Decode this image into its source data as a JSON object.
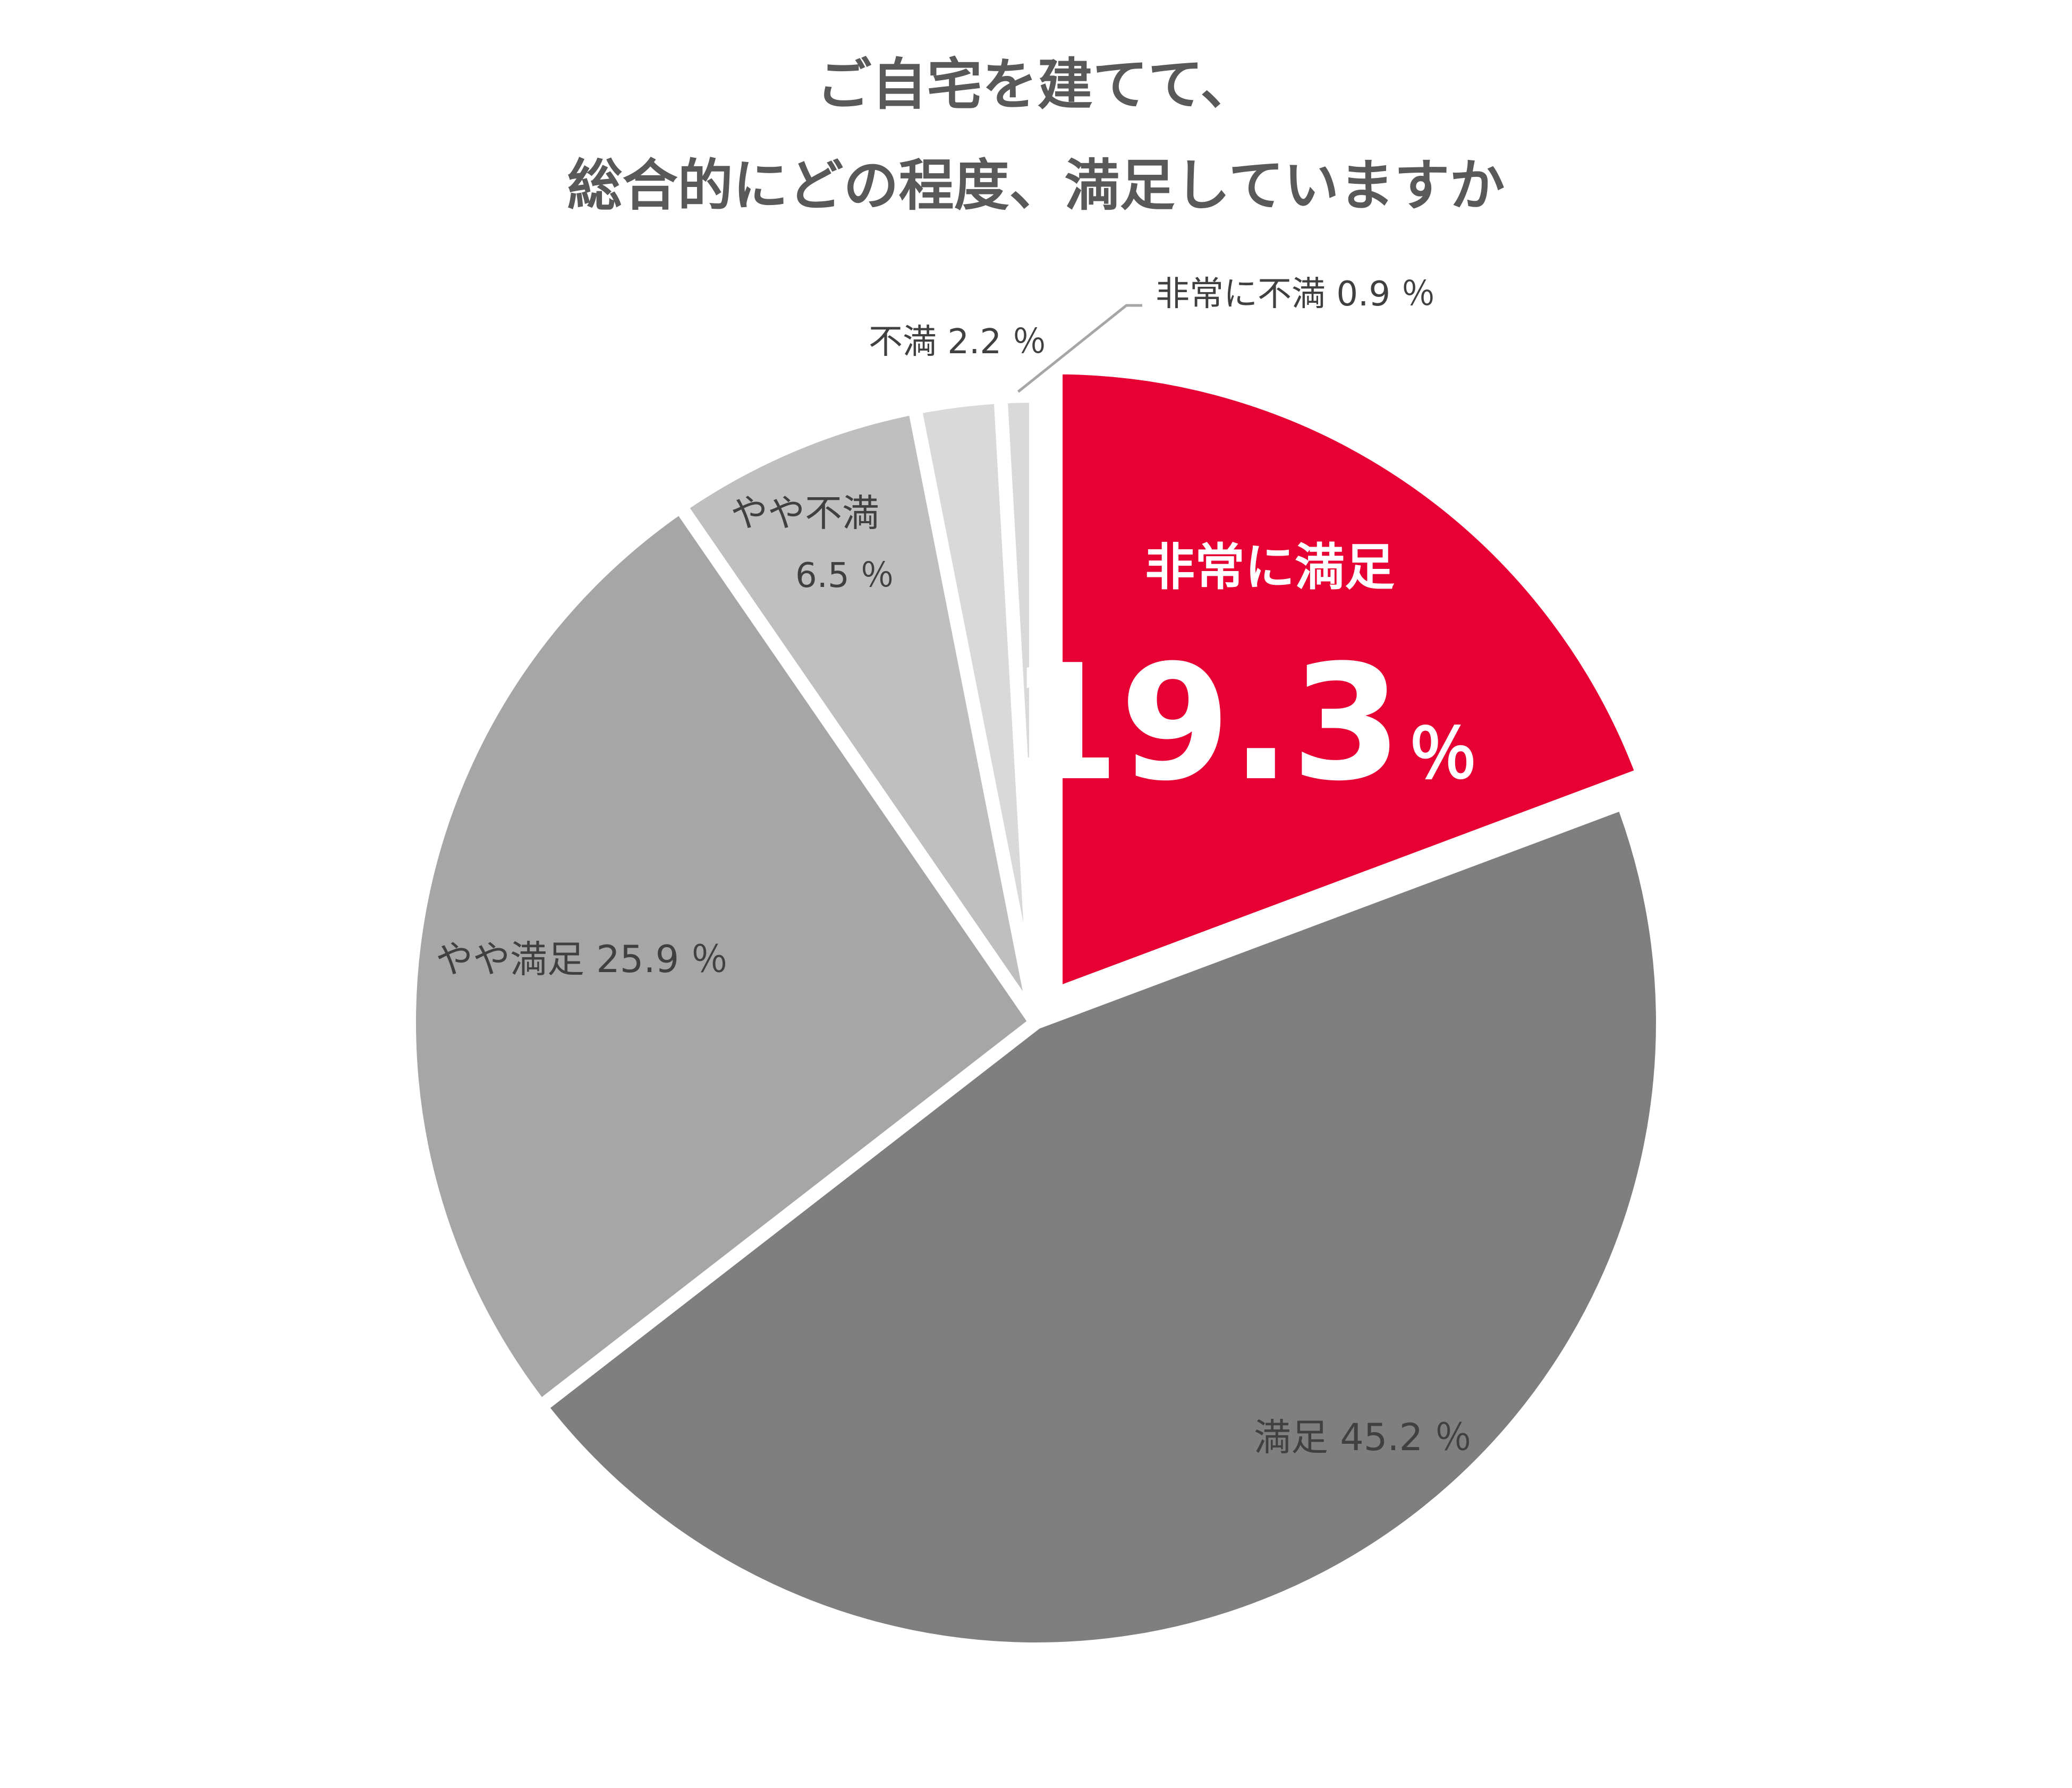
{
  "chart_data": {
    "type": "pie",
    "title_lines": [
      "ご自宅を建てて、",
      "総合的にどの程度、満足していますか"
    ],
    "start": "top",
    "direction": "clockwise",
    "slices": [
      {
        "name": "非常に満足",
        "value": 19.3,
        "value_text": "19.3",
        "unit": "％",
        "color": "#e60033",
        "exploded": true,
        "label_color": "#ffffff"
      },
      {
        "name": "満足",
        "value": 45.2,
        "value_text": "45.2 ％",
        "color": "#7f7f7f",
        "label_color": "#404040"
      },
      {
        "name": "やや満足",
        "value": 25.9,
        "value_text": "25.9 ％",
        "color": "#a6a6a6",
        "label_color": "#404040"
      },
      {
        "name": "やや不満",
        "value": 6.5,
        "value_text": "6.5 ％",
        "color": "#bfbfbf",
        "label_color": "#404040"
      },
      {
        "name": "不満",
        "value": 2.2,
        "value_text": "2.2 ％",
        "color": "#d9d9d9",
        "label_color": "#404040"
      },
      {
        "name": "非常に不満",
        "value": 0.9,
        "value_text": "0.9 ％",
        "color": "#d9d9d9",
        "label_color": "#404040"
      }
    ]
  }
}
